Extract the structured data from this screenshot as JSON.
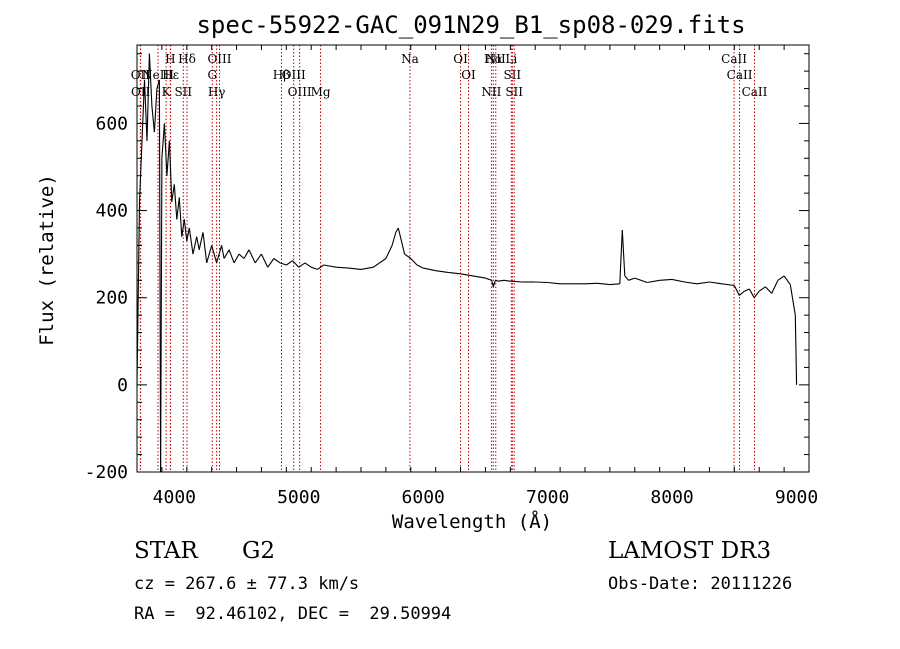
{
  "chart_data": {
    "type": "line",
    "title": "spec-55922-GAC_091N29_B1_sp08-029.fits",
    "xlabel": "Wavelength (Å)",
    "ylabel": "Flux (relative)",
    "xlim": [
      3700,
      9100
    ],
    "ylim": [
      -200,
      780
    ],
    "x_ticks": [
      4000,
      5000,
      6000,
      7000,
      8000,
      9000
    ],
    "y_ticks": [
      -200,
      0,
      200,
      400,
      600
    ],
    "grid": false,
    "line_color": "#000000",
    "series": [
      {
        "x": [
          3700,
          3720,
          3740,
          3760,
          3780,
          3800,
          3820,
          3840,
          3860,
          3880,
          3890,
          3900,
          3920,
          3940,
          3960,
          3980,
          4000,
          4020,
          4040,
          4060,
          4080,
          4100,
          4120,
          4150,
          4180,
          4200,
          4230,
          4260,
          4300,
          4340,
          4380,
          4400,
          4440,
          4480,
          4520,
          4560,
          4600,
          4650,
          4700,
          4750,
          4800,
          4850,
          4900,
          4950,
          5000,
          5050,
          5100,
          5150,
          5200,
          5300,
          5400,
          5500,
          5600,
          5700,
          5750,
          5780,
          5800,
          5850,
          5900,
          5950,
          6000,
          6100,
          6200,
          6300,
          6400,
          6500,
          6550,
          6563,
          6580,
          6600,
          6650,
          6700,
          6800,
          6900,
          7000,
          7100,
          7200,
          7300,
          7400,
          7500,
          7580,
          7600,
          7620,
          7650,
          7700,
          7800,
          7900,
          8000,
          8100,
          8200,
          8300,
          8400,
          8500,
          8540,
          8580,
          8620,
          8660,
          8700,
          8750,
          8800,
          8850,
          8900,
          8950,
          8990,
          9000
        ],
        "y": [
          0,
          420,
          560,
          700,
          560,
          760,
          640,
          580,
          680,
          700,
          -200,
          520,
          600,
          480,
          560,
          420,
          460,
          380,
          430,
          340,
          380,
          330,
          360,
          300,
          340,
          310,
          350,
          280,
          320,
          280,
          320,
          290,
          310,
          280,
          300,
          290,
          310,
          280,
          300,
          270,
          290,
          280,
          275,
          285,
          270,
          280,
          270,
          265,
          275,
          270,
          268,
          265,
          270,
          290,
          320,
          350,
          360,
          300,
          290,
          275,
          268,
          262,
          258,
          255,
          250,
          245,
          240,
          225,
          240,
          238,
          240,
          238,
          236,
          236,
          235,
          232,
          232,
          232,
          233,
          230,
          232,
          355,
          250,
          240,
          245,
          235,
          240,
          242,
          236,
          232,
          236,
          232,
          228,
          205,
          215,
          220,
          200,
          215,
          225,
          210,
          240,
          250,
          230,
          160,
          0
        ]
      }
    ],
    "line_markers": [
      {
        "label": "Hα",
        "wavelength": 6563
      },
      {
        "label": "Hβ",
        "wavelength": 4861
      },
      {
        "label": "Hγ",
        "wavelength": 4340
      },
      {
        "label": "Hδ",
        "wavelength": 4102
      },
      {
        "label": "Hε",
        "wavelength": 3970
      },
      {
        "label": "K",
        "wavelength": 3934
      },
      {
        "label": "H",
        "wavelength": 3968
      },
      {
        "label": "G",
        "wavelength": 4305
      },
      {
        "label": "Mg",
        "wavelength": 5175
      },
      {
        "label": "Na",
        "wavelength": 5893
      },
      {
        "label": "OII",
        "wavelength": 3727
      },
      {
        "label": "OII",
        "wavelength": 3729
      },
      {
        "label": "OIII",
        "wavelength": 4363
      },
      {
        "label": "OIII",
        "wavelength": 4959
      },
      {
        "label": "OIII",
        "wavelength": 5007
      },
      {
        "label": "OI",
        "wavelength": 6300
      },
      {
        "label": "OI",
        "wavelength": 6364
      },
      {
        "label": "NII",
        "wavelength": 6548
      },
      {
        "label": "NII",
        "wavelength": 6583
      },
      {
        "label": "SII",
        "wavelength": 6716
      },
      {
        "label": "SII",
        "wavelength": 6731
      },
      {
        "label": "Li",
        "wavelength": 6708
      },
      {
        "label": "NeIII",
        "wavelength": 3869
      },
      {
        "label": "SII",
        "wavelength": 4072
      },
      {
        "label": "CaII",
        "wavelength": 8498
      },
      {
        "label": "CaII",
        "wavelength": 8542
      },
      {
        "label": "CaII",
        "wavelength": 8662
      }
    ],
    "marker_color": "#c00000"
  },
  "info": {
    "class_label": "STAR",
    "subclass_label": "G2",
    "survey_label": "LAMOST DR3",
    "redshift_line": "cz = 267.6 ± 77.3 km/s",
    "obs_date_line": "Obs-Date: 20111226",
    "coords_line": "RA =  92.46102, DEC =  29.50994"
  }
}
